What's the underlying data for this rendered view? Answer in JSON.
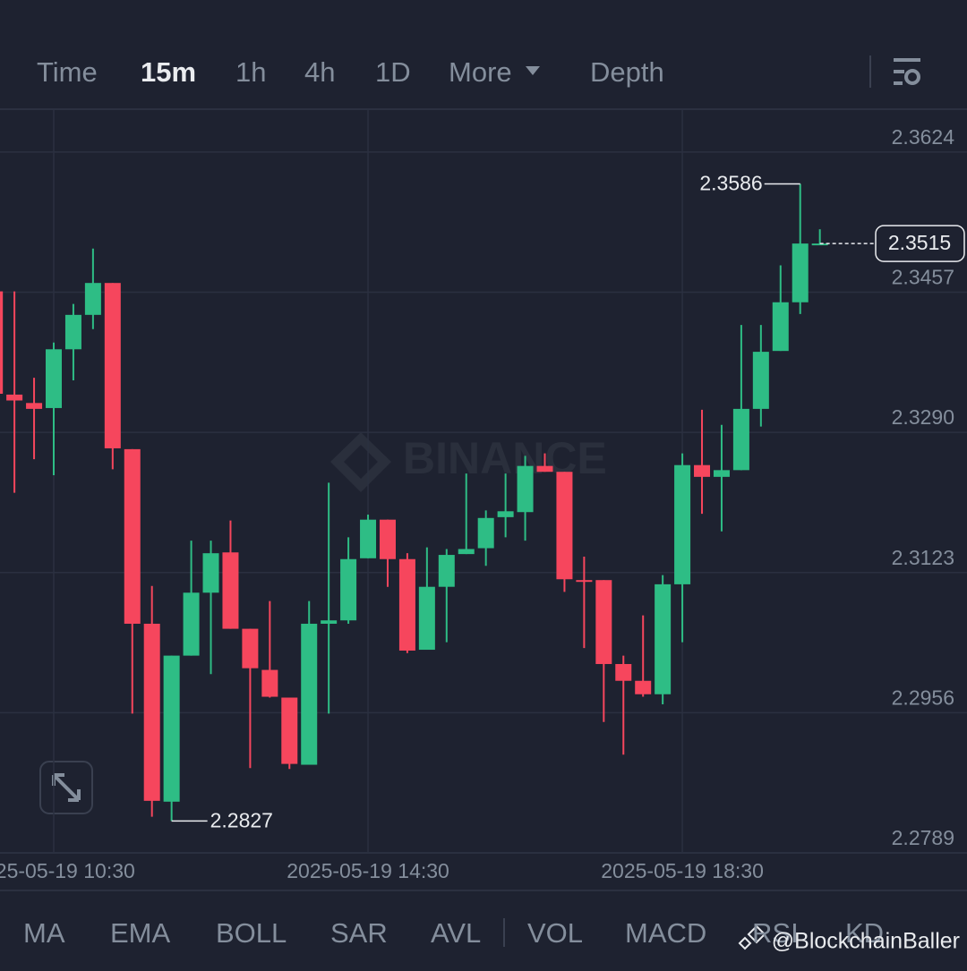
{
  "toolbar": {
    "tabs": [
      "Time",
      "15m",
      "1h",
      "4h",
      "1D",
      "More",
      "Depth"
    ],
    "active_index": 1
  },
  "indicators": [
    "MA",
    "EMA",
    "BOLL",
    "SAR",
    "AVL",
    "VOL",
    "MACD",
    "RSI",
    "KD"
  ],
  "watermark": "BINANCE",
  "credit": "@BlockchainBaller",
  "chart_data": {
    "type": "candlestick",
    "categories": [
      null,
      null,
      null,
      "2025-05-19 10:30",
      null,
      null,
      null,
      null,
      null,
      null,
      null,
      null,
      null,
      null,
      null,
      null,
      null,
      null,
      null,
      "2025-05-19 14:30",
      null,
      null,
      null,
      null,
      null,
      null,
      null,
      null,
      null,
      null,
      null,
      null,
      null,
      null,
      null,
      "2025-05-19 18:30",
      null,
      null,
      null,
      null,
      null,
      null,
      null
    ],
    "open": [
      2.3458,
      2.3335,
      2.3325,
      2.3319,
      2.3389,
      2.343,
      2.3468,
      2.327,
      2.3062,
      2.285,
      2.3024,
      2.3099,
      2.3147,
      2.3056,
      2.3007,
      2.2974,
      2.2894,
      2.3062,
      2.3066,
      2.314,
      2.3186,
      2.3139,
      2.3031,
      2.3106,
      2.3145,
      2.3152,
      2.3189,
      2.3195,
      2.325,
      2.3243,
      2.3114,
      2.3114,
      2.3014,
      2.2994,
      2.2978,
      2.3109,
      2.3251,
      2.3237,
      2.3245,
      2.3318,
      2.3387,
      2.3445,
      2.3514
    ],
    "high": [
      2.3458,
      2.3458,
      2.3355,
      2.3397,
      2.3443,
      2.3509,
      2.3468,
      2.327,
      2.3107,
      2.3024,
      2.3161,
      2.3161,
      2.3185,
      2.3056,
      2.3089,
      2.2974,
      2.3089,
      2.323,
      2.3165,
      2.3192,
      2.3186,
      2.3146,
      2.3153,
      2.3151,
      2.3241,
      2.3197,
      2.3241,
      2.3262,
      2.3265,
      2.3243,
      2.3142,
      2.3114,
      2.3024,
      2.3072,
      2.312,
      2.3265,
      2.3317,
      2.3299,
      2.3418,
      2.3418,
      2.3489,
      2.3586,
      2.3532
    ],
    "low": [
      2.3293,
      2.3218,
      2.3258,
      2.3239,
      2.3352,
      2.3413,
      2.3246,
      2.2955,
      2.2832,
      2.2827,
      2.3024,
      2.3002,
      2.3056,
      2.289,
      2.2974,
      2.2889,
      2.2894,
      2.2955,
      2.3062,
      2.314,
      2.3106,
      2.3027,
      2.3031,
      2.304,
      2.3145,
      2.3131,
      2.3165,
      2.3161,
      2.3243,
      2.31,
      2.3033,
      2.2945,
      2.2906,
      2.2975,
      2.2966,
      2.304,
      2.3193,
      2.3172,
      2.3245,
      2.3297,
      2.3387,
      2.3431,
      2.3514
    ],
    "close": [
      2.3336,
      2.3328,
      2.3318,
      2.3389,
      2.343,
      2.3468,
      2.3271,
      2.3062,
      2.2851,
      2.3024,
      2.3099,
      2.3146,
      2.3056,
      2.3009,
      2.2975,
      2.2895,
      2.3062,
      2.3066,
      2.3139,
      2.3186,
      2.3139,
      2.303,
      2.3106,
      2.3144,
      2.3151,
      2.3188,
      2.3196,
      2.325,
      2.3243,
      2.3115,
      2.3112,
      2.3014,
      2.2994,
      2.2978,
      2.3109,
      2.3251,
      2.3237,
      2.3245,
      2.3318,
      2.3386,
      2.3445,
      2.3515,
      2.3515
    ],
    "up_color": "#2ebd85",
    "down_color": "#f6465d",
    "ylim": [
      2.2789,
      2.3674
    ],
    "yticks": [
      2.3624,
      2.3457,
      {
        "value": 2.329,
        "label": "2.3290"
      },
      2.3123,
      2.2956,
      2.2789
    ],
    "grid": true
  }
}
